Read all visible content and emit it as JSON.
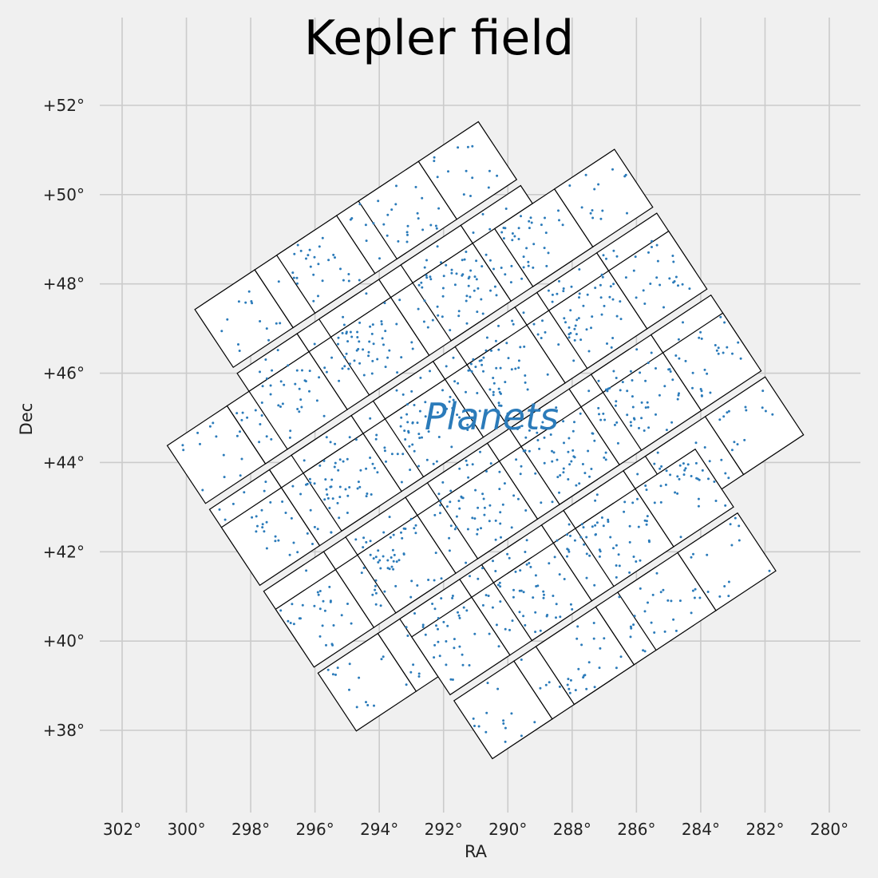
{
  "chart_data": {
    "type": "scatter",
    "title": "Kepler field",
    "xlabel": "RA",
    "ylabel": "Dec",
    "annotation": "Planets",
    "x_reversed": true,
    "xlim": [
      303.5,
      279
    ],
    "ylim": [
      36.2,
      54.0
    ],
    "xticks": [
      302,
      300,
      298,
      296,
      294,
      292,
      290,
      288,
      286,
      284,
      282,
      280
    ],
    "yticks": [
      38,
      40,
      42,
      44,
      46,
      48,
      50,
      52
    ],
    "xtick_labels": [
      "302°",
      "300°",
      "298°",
      "296°",
      "294°",
      "292°",
      "290°",
      "288°",
      "286°",
      "284°",
      "282°",
      "280°"
    ],
    "ytick_labels": [
      "+38°",
      "+40°",
      "+42°",
      "+44°",
      "+46°",
      "+48°",
      "+50°",
      "+52°"
    ],
    "grid": true,
    "colors": {
      "background": "#f0f0f0",
      "grid": "#cbcbcb",
      "points": "#2b7bba",
      "module_fill": "#ffffff",
      "module_edge": "#000000"
    },
    "field_center": {
      "ra": 290.7,
      "dec": 44.5
    },
    "rotation_deg": -32,
    "module_grid": {
      "cols": [
        -2,
        -1,
        0,
        1,
        2
      ],
      "rows": [
        -2,
        -1,
        0,
        1,
        2
      ],
      "corners_excluded": true,
      "module_size_deg": 2.2,
      "module_spacing_deg": 2.55
    },
    "series": [
      {
        "type": "polygons",
        "description_count": 21
      },
      {
        "type": "scatter",
        "points_per_ccd": 28,
        "marker_size": 2.2
      }
    ]
  }
}
